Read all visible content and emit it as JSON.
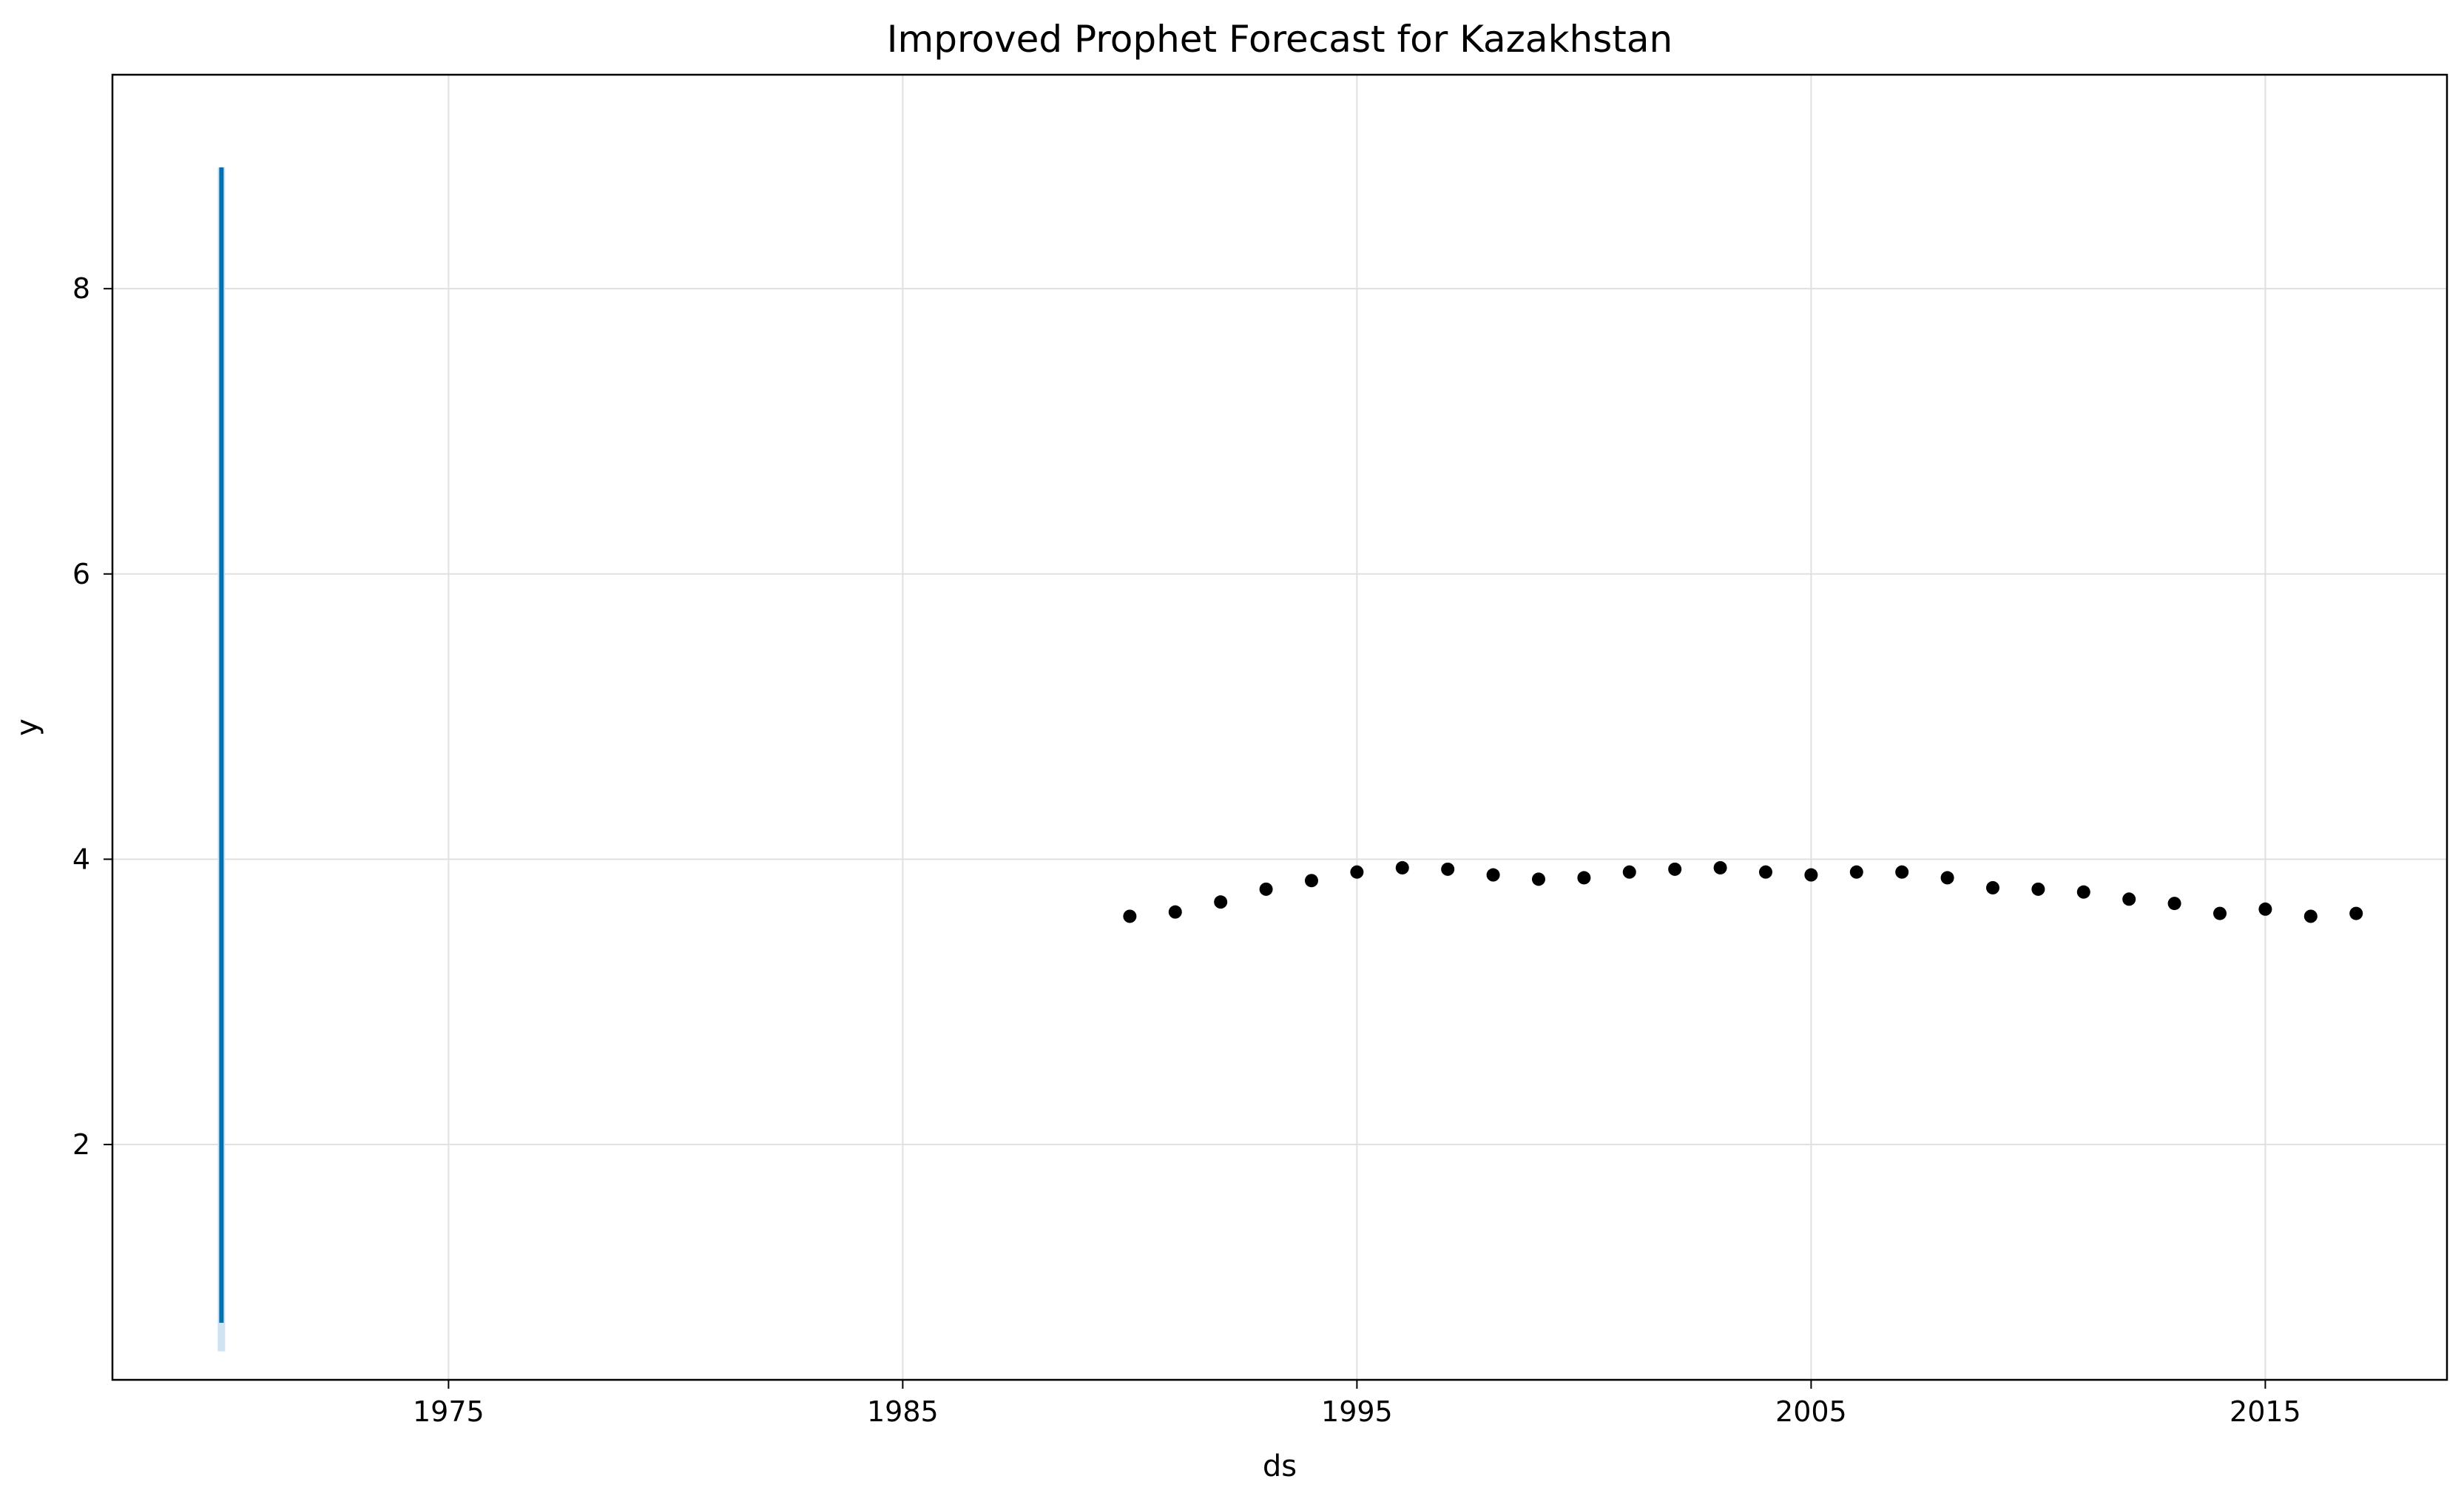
{
  "chart_data": {
    "type": "scatter",
    "title": "Improved Prophet Forecast for Kazakhstan",
    "xlabel": "ds",
    "ylabel": "y",
    "xlim": [
      1967.6,
      2019.0
    ],
    "ylim": [
      0.35,
      9.5
    ],
    "x_ticks": [
      1975,
      1985,
      1995,
      2005,
      2015
    ],
    "x_tick_labels": [
      "1975",
      "1985",
      "1995",
      "2005",
      "2015"
    ],
    "y_ticks": [
      2,
      4,
      6,
      8
    ],
    "y_tick_labels": [
      "2",
      "4",
      "6",
      "8"
    ],
    "grid": true,
    "legend": "none",
    "colors": {
      "points": "#000000",
      "forecast_line": "#0072B2",
      "uncertainty": "#cfe3f3",
      "grid": "#e0e0e0"
    },
    "series": [
      {
        "type": "scatter",
        "x": [
          1990,
          1991,
          1992,
          1993,
          1994,
          1995,
          1996,
          1997,
          1998,
          1999,
          2000,
          2001,
          2002,
          2003,
          2004,
          2005,
          2006,
          2007,
          2008,
          2009,
          2010,
          2011,
          2012,
          2013,
          2014,
          2015,
          2016,
          2017
        ],
        "y": [
          3.6,
          3.63,
          3.7,
          3.79,
          3.85,
          3.91,
          3.94,
          3.93,
          3.89,
          3.86,
          3.87,
          3.91,
          3.93,
          3.94,
          3.91,
          3.89,
          3.91,
          3.91,
          3.87,
          3.8,
          3.79,
          3.77,
          3.72,
          3.69,
          3.62,
          3.65,
          3.6,
          3.62
        ]
      },
      {
        "type": "line",
        "x": [
          1970.0,
          1970.0
        ],
        "y": [
          0.75,
          8.85
        ],
        "band_lower": [
          0.55,
          8.8
        ],
        "band_upper": [
          0.75,
          8.85
        ]
      }
    ]
  }
}
